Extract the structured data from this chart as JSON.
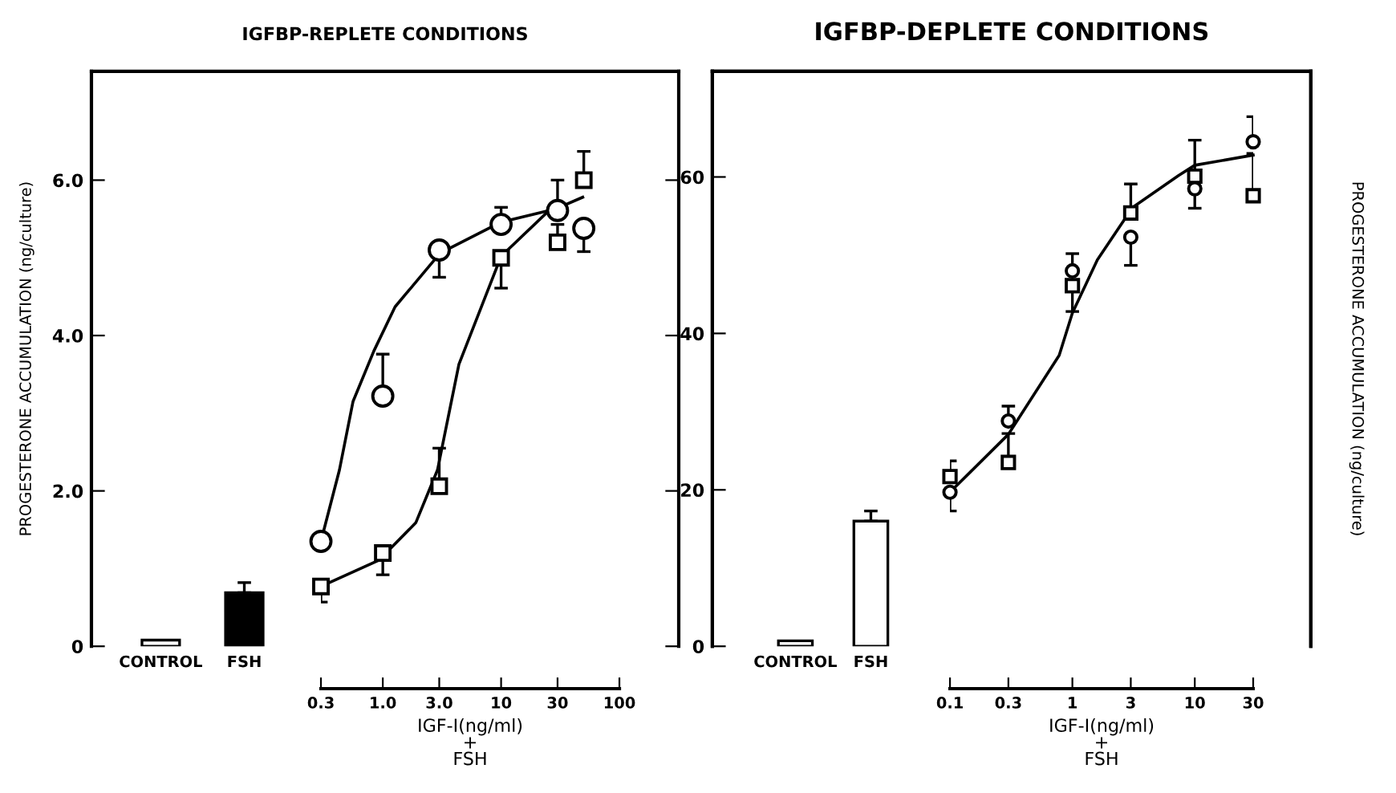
{
  "chart_data": [
    {
      "type": "bar",
      "title": "IGFBP-REPLETE CONDITIONS",
      "ylabel": "PROGESTERONE ACCUMULATION (ng/culture)",
      "categories": [
        "CONTROL",
        "FSH"
      ],
      "values": [
        0.08,
        0.69
      ],
      "colors": [
        "#ffffff",
        "#000000"
      ],
      "errors": [
        null,
        [
          0.69,
          0.82
        ]
      ],
      "ylim": [
        0,
        7.4
      ],
      "yticks": [
        0,
        {
          "value": 2,
          "label": "2.0"
        },
        {
          "value": 4,
          "label": "4.0"
        },
        {
          "value": 6,
          "label": "6.0"
        }
      ],
      "grid": false,
      "legend": false
    },
    {
      "type": "scatter",
      "xlabel": "IGF-I(ng/ml)\n+\nFSH",
      "log": "x",
      "xlim": [
        0.3,
        100
      ],
      "xticks": [
        0.3,
        {
          "value": 1,
          "label": "1.0"
        },
        {
          "value": 3,
          "label": "3.0"
        },
        10,
        30,
        100
      ],
      "ylim": [
        0,
        7.4
      ],
      "tick_labels": "x",
      "grid": false,
      "legend": false,
      "series": [
        {
          "type": "scatter",
          "marker": "circle",
          "color": "#000000",
          "x": [
            0.3,
            1,
            3,
            10,
            30,
            50
          ],
          "values": [
            1.35,
            3.22,
            5.1,
            5.43,
            5.61,
            5.38
          ],
          "errors": [
            null,
            [
              3.22,
              3.76
            ],
            [
              4.75,
              5.1
            ],
            [
              5.43,
              5.65
            ],
            [
              5.61,
              6.0
            ],
            [
              5.08,
              5.38
            ]
          ]
        },
        {
          "type": "scatter",
          "marker": "square",
          "color": "#000000",
          "x": [
            0.3,
            1,
            3,
            10,
            30,
            50
          ],
          "values": [
            0.77,
            1.2,
            2.06,
            5.0,
            5.2,
            6.0
          ],
          "errors": [
            [
              0.57,
              0.77
            ],
            [
              0.92,
              1.2
            ],
            [
              2.06,
              2.55
            ],
            [
              4.61,
              5.0
            ],
            [
              5.2,
              5.43
            ],
            [
              6.0,
              6.37
            ]
          ]
        },
        {
          "type": "line",
          "marker": "none",
          "line_style": "solid",
          "color": "#000000",
          "x": [
            0.3,
            0.43,
            0.56,
            0.84,
            1.27,
            3.05,
            10,
            29,
            49
          ],
          "values": [
            1.35,
            2.27,
            3.15,
            3.8,
            4.37,
            5.06,
            5.46,
            5.63,
            5.78
          ]
        },
        {
          "type": "line",
          "marker": "none",
          "line_style": "solid",
          "color": "#000000",
          "x": [
            0.3,
            0.93,
            1.9,
            2.9,
            4.4,
            10,
            28
          ],
          "values": [
            0.77,
            1.11,
            1.59,
            2.27,
            3.63,
            5.02,
            5.67
          ]
        }
      ]
    },
    {
      "type": "bar",
      "title": "IGFBP-DEPLETE CONDITIONS",
      "y2label": "PROGESTERONE ACCUMULATION (ng/culture)",
      "categories": [
        "CONTROL",
        "FSH"
      ],
      "values": [
        0.7,
        16.0
      ],
      "colors": [
        "#ffffff",
        "#ffffff"
      ],
      "errors": [
        null,
        [
          16.0,
          17.3
        ]
      ],
      "ylim": [
        0,
        73.5
      ],
      "yticks": [
        0,
        20,
        40,
        60
      ],
      "grid": false,
      "legend": false
    },
    {
      "type": "scatter",
      "xlabel": "IGF-I(ng/ml)\n+\nFSH",
      "log": "x",
      "xlim": [
        0.1,
        30
      ],
      "xticks": [
        0.1,
        0.3,
        1,
        3,
        10,
        30
      ],
      "ylim": [
        0,
        73.5
      ],
      "tick_labels": "x",
      "grid": false,
      "legend": false,
      "series": [
        {
          "type": "scatter",
          "marker": "circle",
          "color": "#000000",
          "x": [
            0.1,
            0.3,
            1,
            3,
            10,
            30
          ],
          "values": [
            19.7,
            28.8,
            48.0,
            52.3,
            58.5,
            64.5
          ],
          "errors": [
            [
              17.3,
              19.7
            ],
            [
              28.8,
              30.7
            ],
            [
              48.0,
              50.2
            ],
            [
              48.7,
              52.3
            ],
            [
              56.0,
              58.5
            ],
            [
              64.5,
              67.7
            ]
          ]
        },
        {
          "type": "scatter",
          "marker": "square",
          "color": "#000000",
          "x": [
            0.1,
            0.3,
            1,
            3,
            10,
            30
          ],
          "values": [
            21.7,
            23.5,
            46.1,
            55.4,
            60.1,
            57.6
          ],
          "errors": [
            [
              21.7,
              23.7
            ],
            [
              23.5,
              27.2
            ],
            [
              42.8,
              46.1
            ],
            [
              55.4,
              59.1
            ],
            [
              60.1,
              64.7
            ],
            [
              57.6,
              63.0
            ]
          ]
        },
        {
          "type": "line",
          "marker": "none",
          "line_style": "solid",
          "color": "#000000",
          "x": [
            0.1,
            0.3,
            0.78,
            1,
            1.6,
            3.1,
            7.4,
            10,
            30
          ],
          "values": [
            19.7,
            27.1,
            37.2,
            42.6,
            49.4,
            56.1,
            60.2,
            61.5,
            62.8
          ]
        }
      ]
    }
  ]
}
